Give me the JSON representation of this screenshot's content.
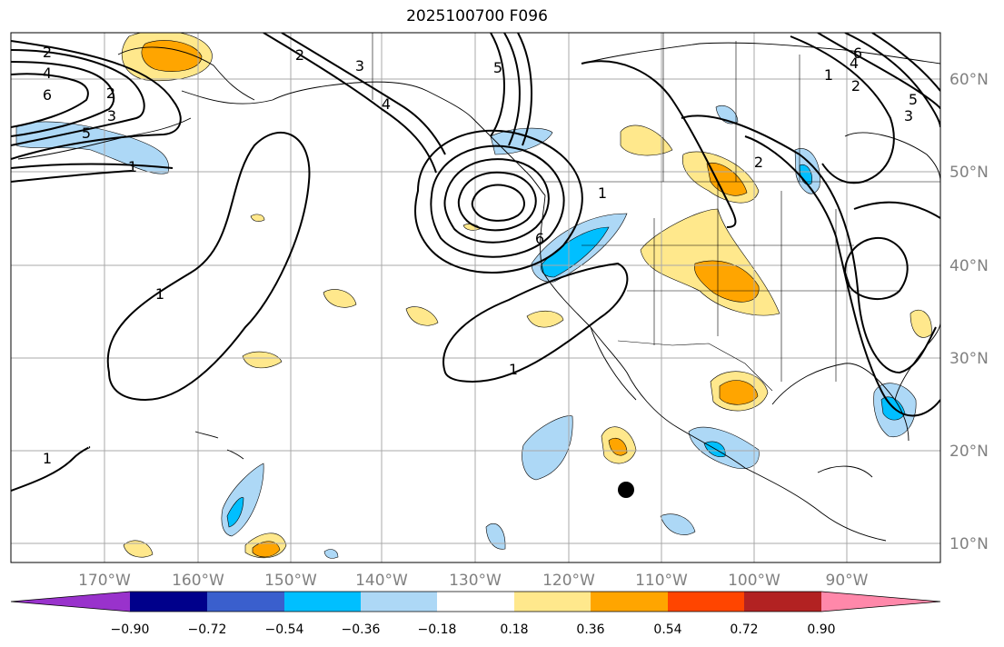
{
  "title": "2025100700 F096",
  "map": {
    "lon_labels": [
      "170°W",
      "160°W",
      "150°W",
      "140°W",
      "130°W",
      "120°W",
      "110°W",
      "100°W",
      "90°W"
    ],
    "lat_labels": [
      "60°N",
      "50°N",
      "40°N",
      "30°N",
      "20°N",
      "10°N"
    ],
    "contour_labels": [
      "2",
      "4",
      "6",
      "2",
      "3",
      "5",
      "1",
      "2",
      "3",
      "4",
      "5",
      "6",
      "1",
      "1",
      "1",
      "1",
      "2",
      "2",
      "3",
      "4",
      "5",
      "6",
      "1"
    ]
  },
  "colorbar": {
    "ticks": [
      "−0.90",
      "−0.72",
      "−0.54",
      "−0.36",
      "−0.18",
      "0.18",
      "0.36",
      "0.54",
      "0.72",
      "0.90"
    ],
    "colors": [
      "#9932cc",
      "#00008b",
      "#3a5fcd",
      "#00bfff",
      "#add8f6",
      "#ffffff",
      "#ffe88c",
      "#ffa500",
      "#ff4500",
      "#b22222",
      "#ff88aa"
    ]
  },
  "colors": {
    "grid": "#a9a9a9",
    "axis_label": "#808080",
    "coast": "#000000"
  }
}
